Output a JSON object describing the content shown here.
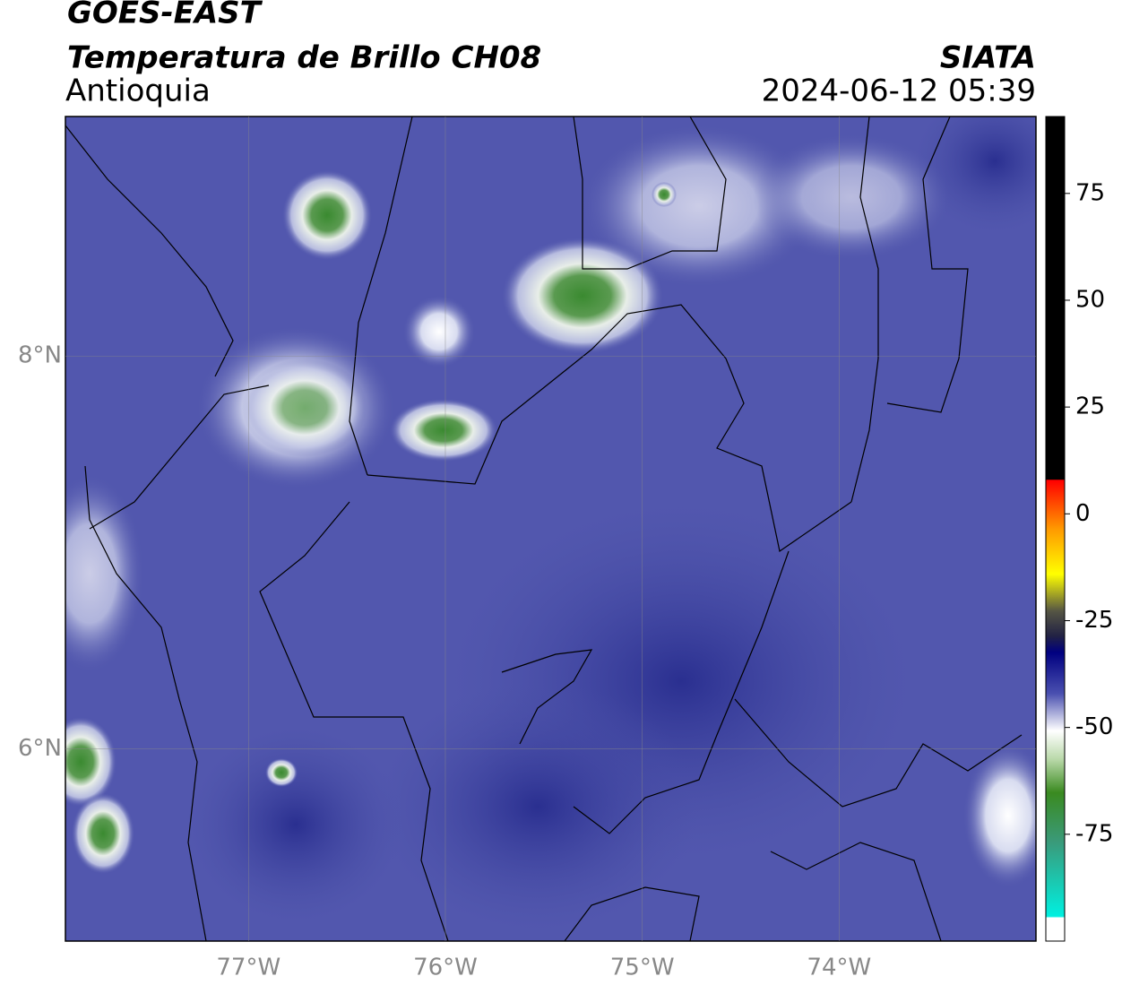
{
  "header": {
    "title": "GOES-EAST",
    "subtitle": "Temperatura de Brillo CH08",
    "region": "Antioquia",
    "source": "SIATA",
    "timestamp": "2024-06-12 05:39"
  },
  "map": {
    "xlim": [
      -77.93,
      -73
    ],
    "ylim": [
      5.02,
      9.22
    ],
    "xticks": [
      {
        "value": -77,
        "label": "77°W"
      },
      {
        "value": -76,
        "label": "76°W"
      },
      {
        "value": -75,
        "label": "75°W"
      },
      {
        "value": -74,
        "label": "74°W"
      }
    ],
    "yticks": [
      {
        "value": 6,
        "label": "6°N"
      },
      {
        "value": 8,
        "label": "8°N"
      }
    ],
    "grid": true
  },
  "colorbar": {
    "lim": [
      -100,
      93
    ],
    "ticks": [
      -75,
      -50,
      -25,
      0,
      25,
      50,
      75
    ]
  }
}
